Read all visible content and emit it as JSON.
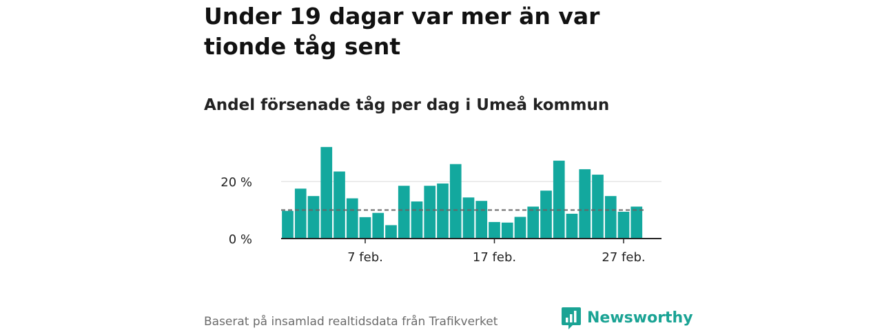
{
  "title": "Under 19 dagar var mer än var tionde tåg sent",
  "subtitle": "Andel försenade tåg per dag i Umeå kommun",
  "source": "Baserat på insamlad realtidsdata från Trafikverket",
  "brand": {
    "name": "Newsworthy",
    "color": "#1aa394"
  },
  "colors": {
    "bar": "#13a89e",
    "reference_line": "#666666",
    "grid": "#d9d9d9",
    "axis": "#222222"
  },
  "chart_data": {
    "type": "bar",
    "title": "Andel försenade tåg per dag i Umeå kommun",
    "xlabel": "",
    "ylabel": "",
    "x_start": "2024-02-01",
    "x_unit": "day",
    "x_tick_labels": [
      "7 feb.",
      "17 feb.",
      "27 feb."
    ],
    "x_tick_days": [
      7,
      17,
      27
    ],
    "y_tick_labels": [
      "0 %",
      "20 %"
    ],
    "y_ticks": [
      0,
      20
    ],
    "ylim": [
      0,
      33
    ],
    "reference_line": {
      "value": 10,
      "style": "dashed"
    },
    "grid": "horizontal",
    "values": [
      9.7,
      17.5,
      14.9,
      32.1,
      23.5,
      14.1,
      7.5,
      9.0,
      4.7,
      18.5,
      13.0,
      18.5,
      19.3,
      26.1,
      14.4,
      13.2,
      5.8,
      5.6,
      7.6,
      11.2,
      16.8,
      27.3,
      8.7,
      24.3,
      22.4,
      14.9,
      9.4,
      11.2
    ]
  }
}
